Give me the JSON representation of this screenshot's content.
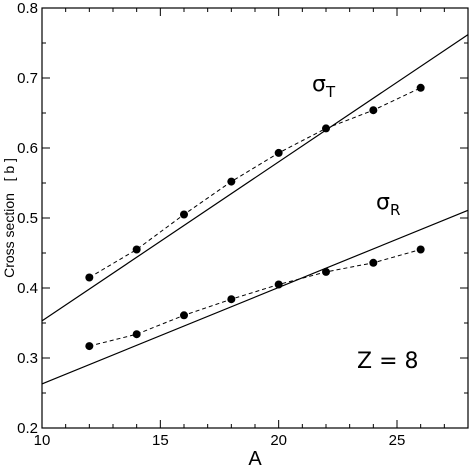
{
  "chart_data": {
    "type": "line",
    "xlabel": "A",
    "ylabel": "Cross section   [ b ]",
    "xlim": [
      10,
      28
    ],
    "ylim": [
      0.2,
      0.8
    ],
    "xticks": [
      10,
      15,
      20,
      25
    ],
    "yticks": [
      0.2,
      0.3,
      0.4,
      0.5,
      0.6,
      0.7,
      0.8
    ],
    "xtick_labels": [
      "10",
      "15",
      "20",
      "25"
    ],
    "ytick_labels": [
      "0.2",
      "0.3",
      "0.4",
      "0.5",
      "0.6",
      "0.7",
      "0.8"
    ],
    "grid": false,
    "series": [
      {
        "name": "σT",
        "style": "dashed-with-dots",
        "x": [
          12,
          14,
          16,
          18,
          20,
          22,
          24,
          26
        ],
        "y": [
          0.415,
          0.455,
          0.505,
          0.552,
          0.593,
          0.628,
          0.654,
          0.686
        ]
      },
      {
        "name": "σR",
        "style": "dashed-with-dots",
        "x": [
          12,
          14,
          16,
          18,
          20,
          22,
          24,
          26
        ],
        "y": [
          0.317,
          0.334,
          0.361,
          0.384,
          0.405,
          0.423,
          0.436,
          0.455
        ]
      },
      {
        "style": "solid",
        "x": [
          10,
          28
        ],
        "y": [
          0.353,
          0.762
        ]
      },
      {
        "style": "solid",
        "x": [
          10,
          28
        ],
        "y": [
          0.263,
          0.511
        ]
      }
    ],
    "annotations": [
      {
        "symbol": "σ",
        "subscript": "T",
        "x": 21.2,
        "y": 0.72
      },
      {
        "symbol": "σ",
        "subscript": "R",
        "x": 21.9,
        "y": 0.545
      },
      {
        "text": "Z = 8",
        "x": 23.0,
        "y": 0.295
      }
    ]
  }
}
